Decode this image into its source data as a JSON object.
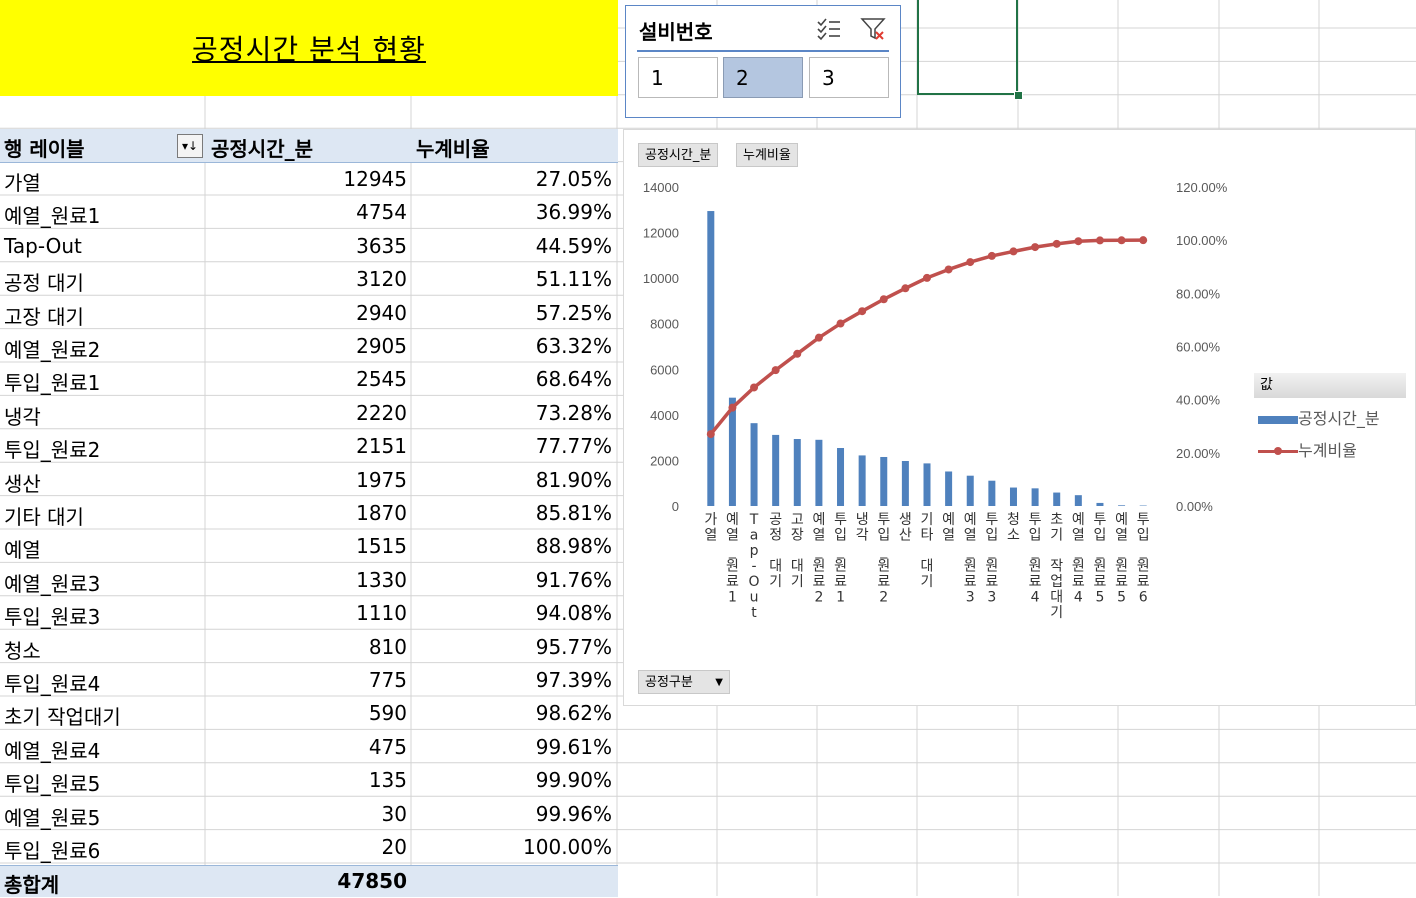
{
  "title": "공정시간 분석 현황",
  "pivot": {
    "headers": {
      "row_label": "행 레이블",
      "col1": "공정시간_분",
      "col2": "누계비율"
    },
    "filter_icon": "sort-filter-dropdown-icon",
    "rows": [
      {
        "label": "가열",
        "minutes": "12945",
        "ratio": "27.05%"
      },
      {
        "label": "예열_원료1",
        "minutes": "4754",
        "ratio": "36.99%"
      },
      {
        "label": "Tap-Out",
        "minutes": "3635",
        "ratio": "44.59%"
      },
      {
        "label": "공정 대기",
        "minutes": "3120",
        "ratio": "51.11%"
      },
      {
        "label": "고장 대기",
        "minutes": "2940",
        "ratio": "57.25%"
      },
      {
        "label": "예열_원료2",
        "minutes": "2905",
        "ratio": "63.32%"
      },
      {
        "label": "투입_원료1",
        "minutes": "2545",
        "ratio": "68.64%"
      },
      {
        "label": "냉각",
        "minutes": "2220",
        "ratio": "73.28%"
      },
      {
        "label": "투입_원료2",
        "minutes": "2151",
        "ratio": "77.77%"
      },
      {
        "label": "생산",
        "minutes": "1975",
        "ratio": "81.90%"
      },
      {
        "label": "기타 대기",
        "minutes": "1870",
        "ratio": "85.81%"
      },
      {
        "label": "예열",
        "minutes": "1515",
        "ratio": "88.98%"
      },
      {
        "label": "예열_원료3",
        "minutes": "1330",
        "ratio": "91.76%"
      },
      {
        "label": "투입_원료3",
        "minutes": "1110",
        "ratio": "94.08%"
      },
      {
        "label": "청소",
        "minutes": "810",
        "ratio": "95.77%"
      },
      {
        "label": "투입_원료4",
        "minutes": "775",
        "ratio": "97.39%"
      },
      {
        "label": "초기 작업대기",
        "minutes": "590",
        "ratio": "98.62%"
      },
      {
        "label": "예열_원료4",
        "minutes": "475",
        "ratio": "99.61%"
      },
      {
        "label": "투입_원료5",
        "minutes": "135",
        "ratio": "99.90%"
      },
      {
        "label": "예열_원료5",
        "minutes": "30",
        "ratio": "99.96%"
      },
      {
        "label": "투입_원료6",
        "minutes": "20",
        "ratio": "100.00%"
      }
    ],
    "total": {
      "label": "총합계",
      "minutes": "47850"
    }
  },
  "slicer": {
    "title": "설비번호",
    "icons": [
      "multi-select-icon",
      "clear-filter-icon"
    ],
    "buttons": [
      "1",
      "2",
      "3"
    ],
    "selected": "2"
  },
  "chart": {
    "chips": {
      "field1": "공정시간_분",
      "field2": "누계비율",
      "axis_field": "공정구분"
    },
    "legend": {
      "title": "값",
      "series1": "공정시간_분",
      "series2": "누계비율"
    },
    "colors": {
      "bar": "#4f81bd",
      "line": "#c0504d"
    }
  },
  "chart_data": {
    "type": "bar",
    "categories": [
      "가열",
      "예열_원료1",
      "Tap-Out",
      "공정 대기",
      "고장 대기",
      "예열_원료2",
      "투입_원료1",
      "냉각",
      "투입_원료2",
      "생산",
      "기타 대기",
      "예열",
      "예열_원료3",
      "투입_원료3",
      "청소",
      "투입_원료4",
      "초기 작업대기",
      "예열_원료4",
      "투입_원료5",
      "예열_원료5",
      "투입_원료6"
    ],
    "series": [
      {
        "name": "공정시간_분",
        "type": "bar",
        "axis": "left",
        "values": [
          12945,
          4754,
          3635,
          3120,
          2940,
          2905,
          2545,
          2220,
          2151,
          1975,
          1870,
          1515,
          1330,
          1110,
          810,
          775,
          590,
          475,
          135,
          30,
          20
        ]
      },
      {
        "name": "누계비율",
        "type": "line",
        "axis": "right",
        "values": [
          27.05,
          36.99,
          44.59,
          51.11,
          57.25,
          63.32,
          68.64,
          73.28,
          77.77,
          81.9,
          85.81,
          88.98,
          91.76,
          94.08,
          95.77,
          97.39,
          98.62,
          99.61,
          99.9,
          99.96,
          100.0
        ]
      }
    ],
    "y_left": {
      "min": 0,
      "max": 14000,
      "ticks": [
        "0",
        "2000",
        "4000",
        "6000",
        "8000",
        "10000",
        "12000",
        "14000"
      ]
    },
    "y_right": {
      "min": 0,
      "max": 120,
      "ticks": [
        "0.00%",
        "20.00%",
        "40.00%",
        "60.00%",
        "80.00%",
        "100.00%",
        "120.00%"
      ]
    },
    "grid": false,
    "legend_position": "right"
  }
}
